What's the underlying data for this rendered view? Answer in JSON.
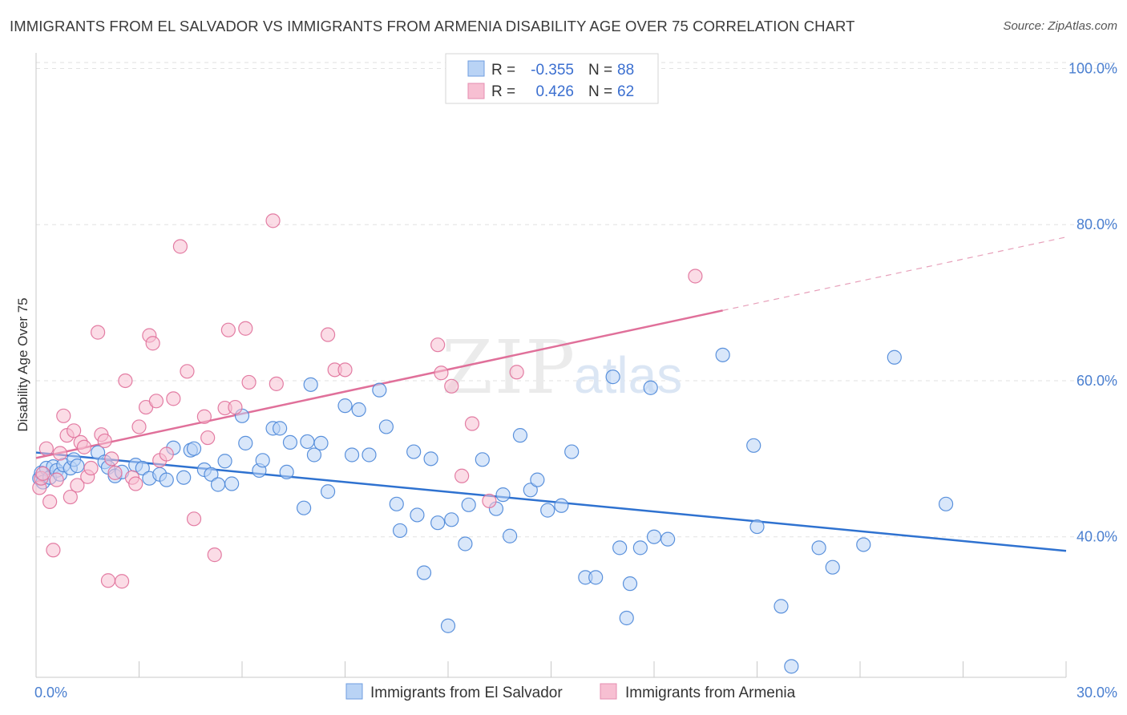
{
  "title": "IMMIGRANTS FROM EL SALVADOR VS IMMIGRANTS FROM ARMENIA DISABILITY AGE OVER 75 CORRELATION CHART",
  "source": "Source: ZipAtlas.com",
  "watermark": {
    "zip": "ZIP",
    "atlas": "atlas"
  },
  "colors": {
    "blue": "#4a86d8",
    "blue_fill": "#b9d3f5",
    "pink": "#e0709a",
    "pink_fill": "#f7bfd2",
    "tick_text": "#4a7fd0"
  },
  "legend": {
    "rows": [
      {
        "r_label": "R =",
        "r_value": "-0.355",
        "n_label": "N =",
        "n_value": "88"
      },
      {
        "r_label": "R =",
        "r_value": "0.426",
        "n_label": "N =",
        "n_value": "62"
      }
    ]
  },
  "chart_data": {
    "type": "scatter",
    "ylabel": "Disability Age Over 75",
    "x_tick_labels": [
      "0.0%",
      "30.0%"
    ],
    "y_tick_labels": [
      "100.0%",
      "80.0%",
      "60.0%",
      "40.0%"
    ],
    "y_ticks": [
      100,
      80,
      60,
      40
    ],
    "xlim": [
      0,
      30
    ],
    "ylim": [
      22,
      102
    ],
    "grid": true,
    "legend_position": "top-center",
    "series": [
      {
        "name": "Immigrants from El Salvador",
        "color": "#4a86d8",
        "fill": "#b9d3f5",
        "trend": {
          "x": [
            0,
            30
          ],
          "y": [
            50.8,
            38.2
          ]
        },
        "points": [
          [
            0.1,
            47.5
          ],
          [
            0.15,
            48.2
          ],
          [
            0.2,
            47.0
          ],
          [
            0.3,
            48.8
          ],
          [
            0.4,
            47.6
          ],
          [
            0.5,
            49.0
          ],
          [
            0.6,
            48.5
          ],
          [
            0.7,
            48.0
          ],
          [
            0.8,
            49.2
          ],
          [
            1.0,
            48.8
          ],
          [
            1.1,
            49.9
          ],
          [
            1.2,
            49.1
          ],
          [
            1.8,
            50.8
          ],
          [
            2.0,
            49.6
          ],
          [
            2.1,
            48.9
          ],
          [
            2.3,
            47.8
          ],
          [
            2.5,
            48.3
          ],
          [
            2.9,
            49.2
          ],
          [
            3.1,
            48.8
          ],
          [
            3.3,
            47.5
          ],
          [
            3.6,
            48.0
          ],
          [
            3.8,
            47.3
          ],
          [
            4.0,
            51.4
          ],
          [
            4.3,
            47.6
          ],
          [
            4.5,
            51.1
          ],
          [
            4.6,
            51.3
          ],
          [
            4.9,
            48.6
          ],
          [
            5.1,
            48.0
          ],
          [
            5.3,
            46.7
          ],
          [
            5.5,
            49.7
          ],
          [
            5.7,
            46.8
          ],
          [
            6.0,
            55.5
          ],
          [
            6.1,
            52.0
          ],
          [
            6.5,
            48.5
          ],
          [
            6.6,
            49.8
          ],
          [
            6.9,
            53.9
          ],
          [
            7.1,
            53.9
          ],
          [
            7.3,
            48.3
          ],
          [
            7.4,
            52.1
          ],
          [
            7.8,
            43.7
          ],
          [
            7.9,
            52.2
          ],
          [
            8.0,
            59.5
          ],
          [
            8.1,
            50.5
          ],
          [
            8.3,
            52.0
          ],
          [
            8.5,
            45.8
          ],
          [
            9.0,
            56.8
          ],
          [
            9.2,
            50.5
          ],
          [
            9.4,
            56.3
          ],
          [
            9.7,
            50.5
          ],
          [
            10.0,
            58.8
          ],
          [
            10.2,
            54.1
          ],
          [
            10.5,
            44.2
          ],
          [
            10.6,
            40.8
          ],
          [
            11.0,
            50.9
          ],
          [
            11.1,
            42.8
          ],
          [
            11.3,
            35.4
          ],
          [
            11.5,
            50.0
          ],
          [
            11.7,
            41.8
          ],
          [
            12.0,
            28.6
          ],
          [
            12.1,
            42.2
          ],
          [
            12.5,
            39.1
          ],
          [
            12.6,
            44.1
          ],
          [
            13.0,
            49.9
          ],
          [
            13.4,
            43.6
          ],
          [
            13.6,
            45.4
          ],
          [
            13.8,
            40.1
          ],
          [
            14.1,
            53.0
          ],
          [
            14.4,
            46.0
          ],
          [
            14.6,
            47.3
          ],
          [
            14.9,
            43.4
          ],
          [
            15.3,
            44.0
          ],
          [
            15.6,
            50.9
          ],
          [
            16.0,
            34.8
          ],
          [
            16.3,
            34.8
          ],
          [
            16.8,
            60.5
          ],
          [
            17.0,
            38.6
          ],
          [
            17.2,
            29.6
          ],
          [
            17.3,
            34.0
          ],
          [
            17.6,
            38.6
          ],
          [
            17.9,
            59.1
          ],
          [
            18.0,
            40.0
          ],
          [
            18.4,
            39.7
          ],
          [
            20.0,
            63.3
          ],
          [
            20.9,
            51.7
          ],
          [
            21.0,
            41.3
          ],
          [
            21.7,
            31.1
          ],
          [
            22.0,
            23.4
          ],
          [
            22.8,
            38.6
          ],
          [
            23.2,
            36.1
          ],
          [
            24.1,
            39.0
          ],
          [
            25.0,
            63.0
          ],
          [
            26.5,
            44.2
          ]
        ]
      },
      {
        "name": "Immigrants from Armenia",
        "color": "#e0709a",
        "fill": "#f7bfd2",
        "trend": {
          "x": [
            0,
            20
          ],
          "y": [
            50.1,
            69.0
          ]
        },
        "trend_ext": {
          "x": [
            20,
            30
          ],
          "y": [
            69.0,
            78.4
          ]
        },
        "points": [
          [
            0.1,
            46.3
          ],
          [
            0.15,
            47.5
          ],
          [
            0.2,
            48.1
          ],
          [
            0.3,
            51.3
          ],
          [
            0.4,
            44.5
          ],
          [
            0.5,
            38.3
          ],
          [
            0.6,
            47.3
          ],
          [
            0.7,
            50.7
          ],
          [
            0.8,
            55.5
          ],
          [
            0.9,
            53.0
          ],
          [
            1.0,
            45.1
          ],
          [
            1.1,
            53.6
          ],
          [
            1.2,
            46.6
          ],
          [
            1.3,
            52.1
          ],
          [
            1.4,
            51.5
          ],
          [
            1.5,
            47.7
          ],
          [
            1.6,
            48.8
          ],
          [
            1.8,
            66.2
          ],
          [
            1.9,
            53.1
          ],
          [
            2.0,
            52.3
          ],
          [
            2.1,
            34.4
          ],
          [
            2.2,
            50.0
          ],
          [
            2.3,
            48.2
          ],
          [
            2.5,
            34.3
          ],
          [
            2.6,
            60.0
          ],
          [
            2.8,
            47.6
          ],
          [
            2.9,
            46.8
          ],
          [
            3.0,
            54.1
          ],
          [
            3.2,
            56.6
          ],
          [
            3.3,
            65.8
          ],
          [
            3.4,
            64.8
          ],
          [
            3.5,
            57.4
          ],
          [
            3.6,
            49.8
          ],
          [
            3.8,
            50.6
          ],
          [
            4.0,
            57.7
          ],
          [
            4.2,
            77.2
          ],
          [
            4.4,
            61.2
          ],
          [
            4.6,
            42.3
          ],
          [
            4.9,
            55.4
          ],
          [
            5.0,
            52.7
          ],
          [
            5.2,
            37.7
          ],
          [
            5.5,
            56.5
          ],
          [
            5.6,
            66.5
          ],
          [
            5.8,
            56.6
          ],
          [
            6.1,
            66.7
          ],
          [
            6.2,
            59.8
          ],
          [
            6.9,
            80.5
          ],
          [
            7.0,
            59.6
          ],
          [
            8.5,
            65.9
          ],
          [
            8.7,
            61.4
          ],
          [
            9.0,
            61.4
          ],
          [
            11.7,
            64.6
          ],
          [
            11.8,
            61.0
          ],
          [
            12.1,
            59.3
          ],
          [
            12.4,
            47.8
          ],
          [
            12.7,
            54.5
          ],
          [
            13.2,
            44.6
          ],
          [
            14.0,
            61.1
          ],
          [
            19.2,
            73.4
          ]
        ]
      }
    ]
  }
}
